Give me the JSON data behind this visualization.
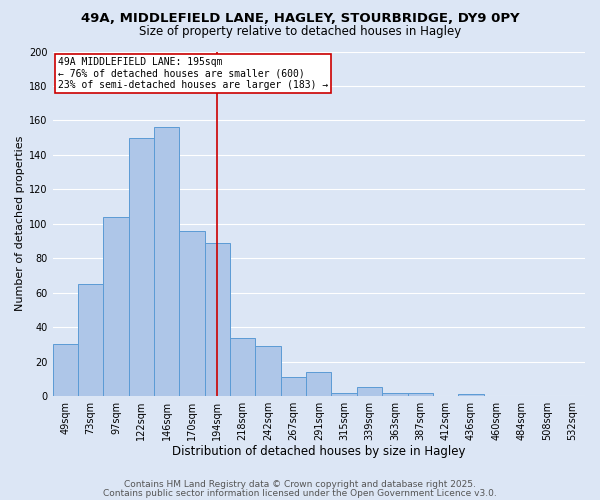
{
  "title1": "49A, MIDDLEFIELD LANE, HAGLEY, STOURBRIDGE, DY9 0PY",
  "title2": "Size of property relative to detached houses in Hagley",
  "xlabel": "Distribution of detached houses by size in Hagley",
  "ylabel": "Number of detached properties",
  "categories": [
    "49sqm",
    "73sqm",
    "97sqm",
    "122sqm",
    "146sqm",
    "170sqm",
    "194sqm",
    "218sqm",
    "242sqm",
    "267sqm",
    "291sqm",
    "315sqm",
    "339sqm",
    "363sqm",
    "387sqm",
    "412sqm",
    "436sqm",
    "460sqm",
    "484sqm",
    "508sqm",
    "532sqm"
  ],
  "values": [
    30,
    65,
    104,
    150,
    156,
    96,
    89,
    34,
    29,
    11,
    14,
    2,
    5,
    2,
    2,
    0,
    1,
    0,
    0,
    0,
    0
  ],
  "bar_color": "#aec6e8",
  "bar_edge_color": "#5b9bd5",
  "background_color": "#dce6f5",
  "grid_color": "#ffffff",
  "annotation_text": "49A MIDDLEFIELD LANE: 195sqm\n← 76% of detached houses are smaller (600)\n23% of semi-detached houses are larger (183) →",
  "annotation_box_color": "#ffffff",
  "annotation_border_color": "#cc0000",
  "vline_color": "#cc0000",
  "ylim": [
    0,
    200
  ],
  "yticks": [
    0,
    20,
    40,
    60,
    80,
    100,
    120,
    140,
    160,
    180,
    200
  ],
  "footer1": "Contains HM Land Registry data © Crown copyright and database right 2025.",
  "footer2": "Contains public sector information licensed under the Open Government Licence v3.0.",
  "title1_fontsize": 9.5,
  "title2_fontsize": 8.5,
  "xlabel_fontsize": 8.5,
  "ylabel_fontsize": 8.0,
  "tick_fontsize": 7.0,
  "annotation_fontsize": 7.0,
  "footer_fontsize": 6.5,
  "bar_width": 1.0,
  "vline_bar_index": 6
}
